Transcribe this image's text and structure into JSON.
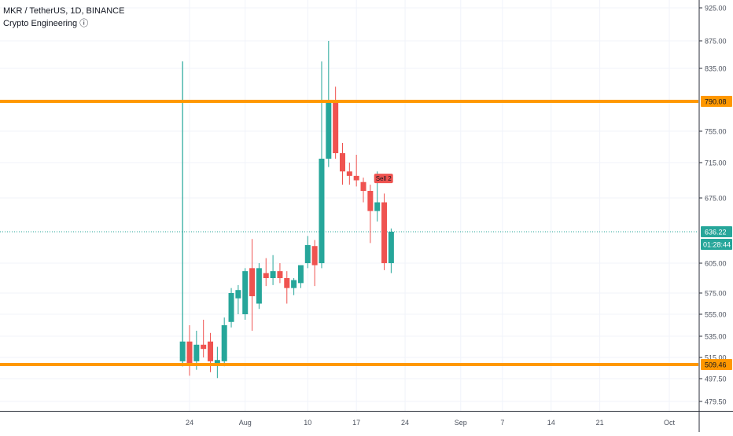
{
  "header": {
    "symbol_line": "MKR / TetherUS, 1D, BINANCE",
    "indicator_line": "Crypto Engineering ⓘ"
  },
  "colors": {
    "up": "#26a69a",
    "down": "#ef5350",
    "level_line": "#ff9800",
    "grid": "#f0f3fa",
    "crosshair": "#2196f3",
    "axis_text": "#4c525e"
  },
  "chart_data": {
    "type": "candlestick",
    "title": "MKR / TetherUS, 1D, BINANCE",
    "y_ticks": [
      {
        "label": "925.00",
        "value": 925.0
      },
      {
        "label": "875.00",
        "value": 875.0
      },
      {
        "label": "835.00",
        "value": 835.0
      },
      {
        "label": "755.00",
        "value": 755.0
      },
      {
        "label": "715.00",
        "value": 715.0
      },
      {
        "label": "675.00",
        "value": 675.0
      },
      {
        "label": "605.00",
        "value": 605.0
      },
      {
        "label": "575.00",
        "value": 575.0
      },
      {
        "label": "555.00",
        "value": 555.0
      },
      {
        "label": "535.00",
        "value": 535.0
      },
      {
        "label": "515.00",
        "value": 515.0
      },
      {
        "label": "497.50",
        "value": 497.5
      },
      {
        "label": "479.50",
        "value": 479.5
      }
    ],
    "x_ticks": [
      {
        "label": "24",
        "date": "2020-07-24"
      },
      {
        "label": "Aug",
        "date": "2020-08-01"
      },
      {
        "label": "10",
        "date": "2020-08-10"
      },
      {
        "label": "17",
        "date": "2020-08-17"
      },
      {
        "label": "24",
        "date": "2020-08-24"
      },
      {
        "label": "Sep",
        "date": "2020-09-01"
      },
      {
        "label": "7",
        "date": "2020-09-07"
      },
      {
        "label": "14",
        "date": "2020-09-14"
      },
      {
        "label": "21",
        "date": "2020-09-21"
      },
      {
        "label": "Oct",
        "date": "2020-10-01"
      }
    ],
    "candles": [
      {
        "date": "2020-07-23",
        "open": 512,
        "high": 845,
        "low": 508,
        "close": 530
      },
      {
        "date": "2020-07-24",
        "open": 530,
        "high": 545,
        "low": 500,
        "close": 510
      },
      {
        "date": "2020-07-25",
        "open": 512,
        "high": 540,
        "low": 505,
        "close": 527
      },
      {
        "date": "2020-07-26",
        "open": 527,
        "high": 550,
        "low": 515,
        "close": 523
      },
      {
        "date": "2020-07-27",
        "open": 530,
        "high": 538,
        "low": 503,
        "close": 512
      },
      {
        "date": "2020-07-28",
        "open": 509,
        "high": 525,
        "low": 498,
        "close": 513
      },
      {
        "date": "2020-07-29",
        "open": 512,
        "high": 552,
        "low": 508,
        "close": 545
      },
      {
        "date": "2020-07-30",
        "open": 548,
        "high": 580,
        "low": 543,
        "close": 575
      },
      {
        "date": "2020-07-31",
        "open": 570,
        "high": 583,
        "low": 555,
        "close": 578
      },
      {
        "date": "2020-08-01",
        "open": 555,
        "high": 600,
        "low": 550,
        "close": 597
      },
      {
        "date": "2020-08-02",
        "open": 600,
        "high": 629,
        "low": 540,
        "close": 572
      },
      {
        "date": "2020-08-03",
        "open": 565,
        "high": 605,
        "low": 560,
        "close": 600
      },
      {
        "date": "2020-08-04",
        "open": 595,
        "high": 610,
        "low": 582,
        "close": 590
      },
      {
        "date": "2020-08-05",
        "open": 590,
        "high": 613,
        "low": 583,
        "close": 597
      },
      {
        "date": "2020-08-06",
        "open": 597,
        "high": 605,
        "low": 585,
        "close": 590
      },
      {
        "date": "2020-08-07",
        "open": 590,
        "high": 597,
        "low": 565,
        "close": 580
      },
      {
        "date": "2020-08-08",
        "open": 580,
        "high": 590,
        "low": 573,
        "close": 588
      },
      {
        "date": "2020-08-09",
        "open": 585,
        "high": 600,
        "low": 580,
        "close": 603
      },
      {
        "date": "2020-08-10",
        "open": 605,
        "high": 632,
        "low": 600,
        "close": 623
      },
      {
        "date": "2020-08-11",
        "open": 622,
        "high": 628,
        "low": 582,
        "close": 603
      },
      {
        "date": "2020-08-12",
        "open": 605,
        "high": 845,
        "low": 600,
        "close": 720
      },
      {
        "date": "2020-08-13",
        "open": 720,
        "high": 875,
        "low": 710,
        "close": 790
      },
      {
        "date": "2020-08-14",
        "open": 790,
        "high": 810,
        "low": 720,
        "close": 727
      },
      {
        "date": "2020-08-15",
        "open": 727,
        "high": 740,
        "low": 690,
        "close": 705
      },
      {
        "date": "2020-08-16",
        "open": 705,
        "high": 715,
        "low": 690,
        "close": 700
      },
      {
        "date": "2020-08-17",
        "open": 700,
        "high": 725,
        "low": 688,
        "close": 695
      },
      {
        "date": "2020-08-18",
        "open": 693,
        "high": 698,
        "low": 670,
        "close": 683
      },
      {
        "date": "2020-08-19",
        "open": 683,
        "high": 690,
        "low": 625,
        "close": 660
      },
      {
        "date": "2020-08-20",
        "open": 660,
        "high": 705,
        "low": 648,
        "close": 670
      },
      {
        "date": "2020-08-21",
        "open": 670,
        "high": 680,
        "low": 598,
        "close": 605
      },
      {
        "date": "2020-08-22",
        "open": 605,
        "high": 640,
        "low": 595,
        "close": 636.22
      }
    ],
    "horizontal_levels": [
      {
        "price": 790.08,
        "label": "790.08"
      },
      {
        "price": 509.46,
        "label": "509.46"
      }
    ],
    "current_price": {
      "price": 636.22,
      "label": "636.22",
      "countdown": "01:28:44"
    },
    "annotation": {
      "text": "Sell 2",
      "date": "2020-08-20",
      "price": 690
    },
    "vertical_marker": {
      "date": "2020-07-23"
    }
  }
}
